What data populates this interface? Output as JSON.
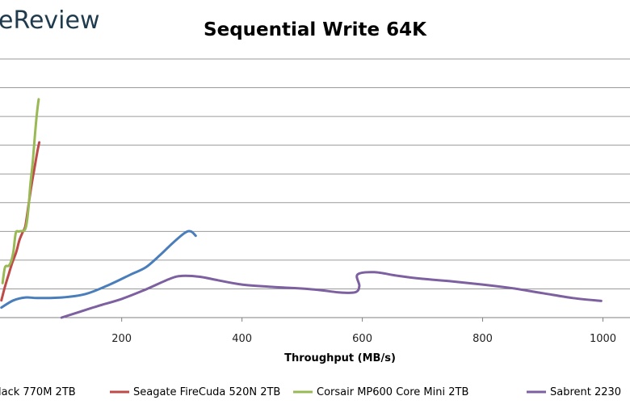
{
  "brand": {
    "text": "eReview"
  },
  "chart_data": {
    "type": "line",
    "title": "Sequential Write 64K",
    "xlabel": "Throughput  (MB/s)",
    "ylabel": "",
    "xlim": [
      -5,
      1045
    ],
    "ylim": [
      0,
      9
    ],
    "xticks": [
      200,
      400,
      600,
      800,
      1000
    ],
    "grid": "horizontal",
    "legend_position": "bottom",
    "series": [
      {
        "name": "lack 770M 2TB",
        "color": "#4a7ebb",
        "points": [
          [
            0,
            0.35
          ],
          [
            20,
            0.6
          ],
          [
            40,
            0.7
          ],
          [
            60,
            0.68
          ],
          [
            100,
            0.7
          ],
          [
            140,
            0.82
          ],
          [
            180,
            1.15
          ],
          [
            215,
            1.5
          ],
          [
            240,
            1.75
          ],
          [
            265,
            2.2
          ],
          [
            285,
            2.6
          ],
          [
            305,
            2.95
          ],
          [
            315,
            3.0
          ],
          [
            323,
            2.85
          ]
        ]
      },
      {
        "name": "Seagate FireCuda 520N 2TB",
        "color": "#be4b48",
        "points": [
          [
            0,
            0.6
          ],
          [
            5,
            1.0
          ],
          [
            12,
            1.5
          ],
          [
            18,
            1.9
          ],
          [
            25,
            2.3
          ],
          [
            30,
            2.7
          ],
          [
            36,
            3.0
          ],
          [
            40,
            3.2
          ],
          [
            45,
            3.9
          ],
          [
            50,
            4.6
          ],
          [
            55,
            5.2
          ],
          [
            60,
            5.8
          ],
          [
            63,
            6.1
          ]
        ]
      },
      {
        "name": "Corsair MP600 Core Mini 2TB",
        "color": "#98b954",
        "points": [
          [
            2,
            1.2
          ],
          [
            6,
            1.75
          ],
          [
            12,
            1.8
          ],
          [
            16,
            1.95
          ],
          [
            20,
            2.3
          ],
          [
            24,
            2.95
          ],
          [
            30,
            3.0
          ],
          [
            40,
            3.1
          ],
          [
            45,
            3.8
          ],
          [
            48,
            4.6
          ],
          [
            52,
            5.4
          ],
          [
            56,
            6.4
          ],
          [
            59,
            7.1
          ],
          [
            62,
            7.6
          ]
        ]
      },
      {
        "name": "Sabrent 2230",
        "color": "#7d60a0",
        "points": [
          [
            100,
            0
          ],
          [
            130,
            0.2
          ],
          [
            160,
            0.4
          ],
          [
            200,
            0.65
          ],
          [
            240,
            0.98
          ],
          [
            280,
            1.35
          ],
          [
            300,
            1.45
          ],
          [
            330,
            1.42
          ],
          [
            360,
            1.3
          ],
          [
            400,
            1.15
          ],
          [
            450,
            1.07
          ],
          [
            520,
            0.98
          ],
          [
            560,
            0.88
          ],
          [
            588,
            0.88
          ],
          [
            595,
            1.1
          ],
          [
            592,
            1.5
          ],
          [
            620,
            1.58
          ],
          [
            660,
            1.45
          ],
          [
            700,
            1.35
          ],
          [
            750,
            1.26
          ],
          [
            800,
            1.15
          ],
          [
            850,
            1.02
          ],
          [
            900,
            0.85
          ],
          [
            950,
            0.68
          ],
          [
            997,
            0.58
          ]
        ]
      }
    ]
  }
}
